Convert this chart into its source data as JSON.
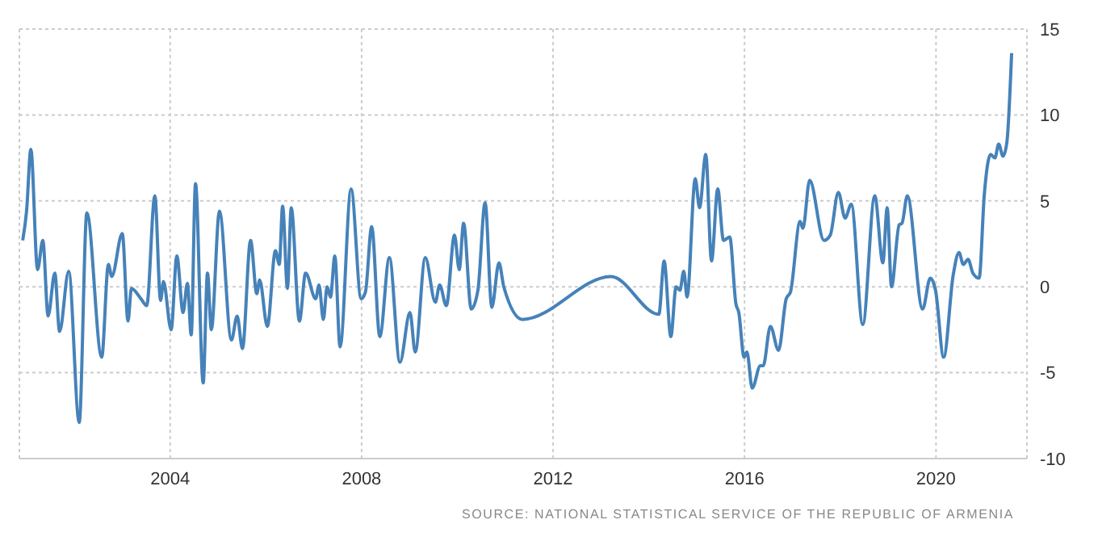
{
  "chart_data": {
    "type": "line",
    "color": "#4682b9",
    "x": [
      2000.92,
      2001.0,
      2001.09,
      2001.23,
      2001.34,
      2001.45,
      2001.59,
      2001.69,
      2001.88,
      2002.1,
      2002.26,
      2002.57,
      2002.71,
      2002.78,
      2003.0,
      2003.12,
      2003.19,
      2003.39,
      2003.51,
      2003.68,
      2003.8,
      2003.86,
      2004.02,
      2004.14,
      2004.27,
      2004.36,
      2004.44,
      2004.53,
      2004.69,
      2004.78,
      2004.86,
      2005.03,
      2005.28,
      2005.4,
      2005.51,
      2005.68,
      2005.81,
      2005.87,
      2006.03,
      2006.2,
      2006.28,
      2006.35,
      2006.45,
      2006.53,
      2006.7,
      2006.83,
      2007.04,
      2007.11,
      2007.2,
      2007.28,
      2007.35,
      2007.44,
      2007.55,
      2007.78,
      2007.99,
      2008.08,
      2008.21,
      2008.38,
      2008.58,
      2008.8,
      2009.01,
      2009.12,
      2009.33,
      2009.54,
      2009.63,
      2009.77,
      2009.94,
      2010.04,
      2010.13,
      2010.29,
      2010.43,
      2010.58,
      2010.72,
      2010.87,
      2010.97,
      2011.36,
      2013.21,
      2014.21,
      2014.32,
      2014.46,
      2014.57,
      2014.65,
      2014.73,
      2014.8,
      2014.97,
      2015.06,
      2015.19,
      2015.31,
      2015.44,
      2015.56,
      2015.69,
      2015.82,
      2015.88,
      2015.99,
      2016.05,
      2016.16,
      2016.33,
      2016.39,
      2016.54,
      2016.71,
      2016.87,
      2016.96,
      2017.16,
      2017.22,
      2017.36,
      2017.66,
      2017.79,
      2017.96,
      2018.1,
      2018.23,
      2018.47,
      2018.72,
      2018.89,
      2018.98,
      2019.07,
      2019.23,
      2019.29,
      2019.4,
      2019.72,
      2019.88,
      2019.99,
      2020.16,
      2020.36,
      2020.48,
      2020.57,
      2020.67,
      2020.77,
      2020.9,
      2021.01,
      2021.14,
      2021.23,
      2021.31,
      2021.4,
      2021.48,
      2021.58
    ],
    "values": [
      2.7,
      4.4,
      8.0,
      1.0,
      2.7,
      -1.7,
      0.8,
      -2.6,
      0.9,
      -7.9,
      4.3,
      -4.1,
      1.3,
      0.6,
      3.1,
      -2.0,
      -0.1,
      -0.7,
      -1.1,
      5.3,
      -0.8,
      0.3,
      -2.5,
      1.8,
      -1.5,
      0.2,
      -2.8,
      6.0,
      -5.6,
      0.8,
      -2.5,
      4.4,
      -3.1,
      -1.7,
      -3.6,
      2.7,
      -0.4,
      0.4,
      -2.3,
      2.1,
      1.3,
      4.7,
      -0.1,
      4.6,
      -2.0,
      0.8,
      -0.7,
      0.1,
      -1.9,
      0.0,
      -0.6,
      1.8,
      -3.5,
      5.7,
      -0.7,
      -0.3,
      3.5,
      -2.9,
      1.7,
      -4.4,
      -1.5,
      -3.8,
      1.7,
      -0.9,
      0.1,
      -1.1,
      3.0,
      1.0,
      3.7,
      -1.3,
      -0.2,
      4.9,
      -1.2,
      1.4,
      0.0,
      -1.9,
      0.6,
      -1.6,
      1.5,
      -2.9,
      0.0,
      -0.2,
      0.9,
      -0.6,
      6.3,
      4.6,
      7.7,
      1.5,
      5.7,
      2.7,
      2.9,
      -1.0,
      -1.5,
      -4.1,
      -3.8,
      -5.9,
      -4.6,
      -4.6,
      -2.3,
      -3.7,
      -0.7,
      -0.3,
      3.8,
      3.4,
      6.2,
      2.7,
      3.0,
      5.5,
      4.0,
      4.8,
      -2.2,
      5.3,
      1.4,
      4.6,
      0.0,
      3.6,
      3.7,
      5.3,
      -1.3,
      0.5,
      -0.2,
      -4.1,
      0.7,
      2.0,
      1.3,
      1.6,
      0.8,
      0.5,
      5.4,
      7.7,
      7.5,
      8.3,
      7.6,
      8.4,
      13.6
    ],
    "xlim": [
      2000.85,
      2021.9
    ],
    "xticks": [
      2004,
      2008,
      2012,
      2016,
      2020
    ],
    "ylim": [
      -10,
      15
    ],
    "yticks": [
      -10,
      -5,
      0,
      5,
      10,
      15
    ],
    "grid": true,
    "annotations": [
      "SOURCE: NATIONAL STATISTICAL SERVICE OF THE REPUBLIC OF ARMENIA"
    ]
  }
}
